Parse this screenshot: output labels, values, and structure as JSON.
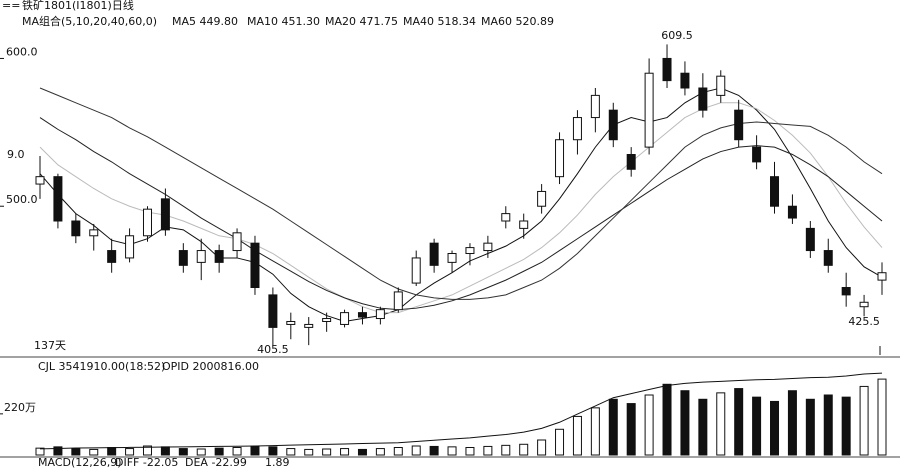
{
  "chart_data": {
    "type": "candlestick",
    "title": "铁矿1801(I1801)日线",
    "ma_labels": [
      "MA组合(5,10,20,40,60,0)",
      "MA5 449.80",
      "MA10 451.30",
      "MA20 471.75",
      "MA40 518.34",
      "MA60 520.89"
    ],
    "open": [
      515,
      520,
      490,
      480,
      470,
      465,
      480,
      505,
      470,
      462,
      470,
      470,
      475,
      440,
      420,
      418,
      422,
      420,
      428,
      424,
      430,
      448,
      475,
      462,
      468,
      470,
      490,
      485,
      500,
      520,
      545,
      560,
      565,
      535,
      540,
      600,
      590,
      580,
      575,
      565,
      540,
      520,
      500,
      485,
      470,
      445,
      432,
      450
    ],
    "high": [
      534,
      522,
      495,
      488,
      478,
      485,
      500,
      512,
      475,
      478,
      474,
      485,
      480,
      445,
      428,
      425,
      428,
      430,
      432,
      432,
      445,
      470,
      478,
      470,
      475,
      480,
      500,
      495,
      515,
      550,
      565,
      580,
      570,
      540,
      600,
      609.5,
      598,
      590,
      592,
      572,
      548,
      530,
      508,
      490,
      478,
      455,
      440,
      462
    ],
    "low": [
      505,
      485,
      475,
      470,
      455,
      462,
      476,
      480,
      455,
      450,
      455,
      465,
      440,
      405.5,
      410,
      406,
      415,
      418,
      420,
      420,
      428,
      446,
      455,
      455,
      460,
      465,
      485,
      478,
      495,
      515,
      535,
      550,
      540,
      520,
      535,
      580,
      575,
      560,
      570,
      540,
      525,
      495,
      488,
      465,
      455,
      432,
      425.5,
      440
    ],
    "close": [
      520,
      490,
      480,
      484,
      462,
      480,
      498,
      484,
      460,
      470,
      462,
      482,
      445,
      418,
      422,
      420,
      424,
      428,
      425,
      430,
      442,
      465,
      460,
      468,
      472,
      475,
      495,
      490,
      510,
      545,
      560,
      575,
      545,
      525,
      590,
      585,
      580,
      565,
      588,
      545,
      530,
      500,
      492,
      470,
      460,
      440,
      435,
      455
    ],
    "ylim": [
      400,
      625
    ],
    "yticks": [
      {
        "value": 500,
        "label": "500.0"
      },
      {
        "value": 600,
        "label": "600.0"
      }
    ],
    "ma_series": [
      {
        "color": "#111111",
        "values": [
          522,
          508,
          495,
          487,
          477,
          474,
          478,
          486,
          484,
          476,
          465,
          465,
          462,
          454,
          441,
          432,
          426,
          422,
          424,
          426,
          430,
          440,
          448,
          455,
          463,
          468,
          473,
          480,
          490,
          505,
          522,
          540,
          555,
          560,
          557,
          560,
          570,
          577,
          580,
          575,
          565,
          552,
          533,
          512,
          490,
          472,
          459,
          452
        ]
      },
      {
        "color": "#bbbbbb",
        "values": [
          540,
          528,
          520,
          512,
          505,
          500,
          496,
          494,
          490,
          485,
          480,
          478,
          474,
          468,
          460,
          452,
          444,
          438,
          432,
          428,
          428,
          432,
          436,
          440,
          446,
          452,
          458,
          464,
          472,
          482,
          494,
          508,
          520,
          530,
          540,
          550,
          560,
          566,
          570,
          570,
          566,
          558,
          548,
          536,
          520,
          502,
          486,
          472
        ]
      },
      {
        "color": "#222222",
        "values": [
          560,
          552,
          545,
          537,
          530,
          522,
          515,
          508,
          500,
          492,
          485,
          478,
          470,
          463,
          456,
          449,
          443,
          438,
          434,
          431,
          430,
          431,
          433,
          436,
          440,
          445,
          450,
          456,
          462,
          470,
          478,
          486,
          494,
          502,
          510,
          518,
          525,
          532,
          537,
          540,
          541,
          540,
          535,
          528,
          520,
          510,
          500,
          490
        ]
      },
      {
        "color": "#333333",
        "values": [
          580,
          575,
          570,
          565,
          560,
          553,
          547,
          540,
          533,
          526,
          519,
          512,
          505,
          498,
          490,
          482,
          474,
          466,
          458,
          450,
          444,
          440,
          438,
          437,
          437,
          438,
          440,
          445,
          450,
          458,
          468,
          480,
          492,
          504,
          516,
          528,
          540,
          548,
          553,
          556,
          557,
          556,
          555,
          554,
          548,
          540,
          530,
          522
        ]
      }
    ],
    "annotations": [
      "9.0",
      "609.5",
      "405.5",
      "425.5"
    ],
    "days_label": "137天",
    "volume_label": "CJL 3541910.00(18:52)",
    "oi_label": "OPID 2000816.00",
    "volume": [
      320000,
      380000,
      300000,
      260000,
      350000,
      300000,
      420000,
      380000,
      300000,
      280000,
      320000,
      350000,
      400000,
      380000,
      300000,
      260000,
      280000,
      300000,
      260000,
      300000,
      350000,
      420000,
      400000,
      380000,
      350000,
      400000,
      450000,
      500000,
      700000,
      1200000,
      1800000,
      2200000,
      2600000,
      2400000,
      2800000,
      3300000,
      3000000,
      2600000,
      2900000,
      3100000,
      2700000,
      2500000,
      3000000,
      2600000,
      2800000,
      2700000,
      3200000,
      3541910
    ],
    "volume_ylim": [
      0,
      4200000
    ],
    "volume_yticks": [
      {
        "value": 2200000,
        "label": "220万"
      }
    ],
    "open_interest": {
      "axis": "y2",
      "values": [
        150000,
        160000,
        170000,
        175000,
        180000,
        185000,
        190000,
        195000,
        200000,
        205000,
        210000,
        215000,
        220000,
        230000,
        240000,
        250000,
        260000,
        270000,
        280000,
        290000,
        300000,
        330000,
        360000,
        390000,
        420000,
        460000,
        500000,
        560000,
        650000,
        800000,
        1000000,
        1200000,
        1400000,
        1500000,
        1600000,
        1700000,
        1750000,
        1780000,
        1800000,
        1820000,
        1840000,
        1850000,
        1870000,
        1890000,
        1900000,
        1930000,
        1980000,
        2000816
      ]
    },
    "y2lim": [
      0,
      2200000
    ],
    "macd_labels": [
      "MACD(12,26,9)",
      "DIFF -22.05",
      "DEA -22.99",
      "1.89"
    ]
  }
}
